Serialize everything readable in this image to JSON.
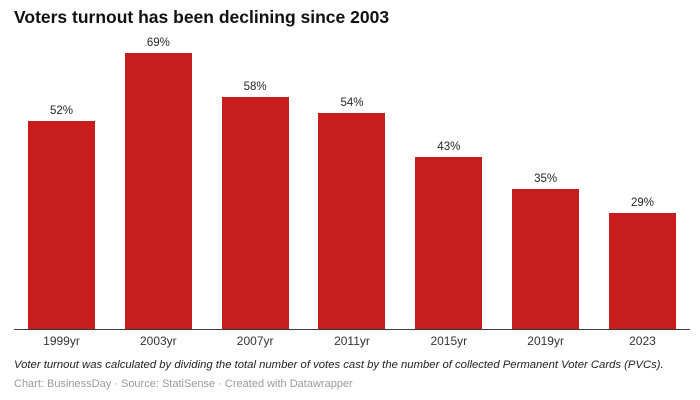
{
  "header": {
    "title": "Voters turnout has been declining since 2003"
  },
  "chart_data": {
    "type": "bar",
    "title": "Voters turnout has been declining since 2003",
    "categories": [
      "1999yr",
      "2003yr",
      "2007yr",
      "2011yr",
      "2015yr",
      "2019yr",
      "2023"
    ],
    "values": [
      52,
      69,
      58,
      54,
      43,
      35,
      29
    ],
    "value_labels": [
      "52%",
      "69%",
      "58%",
      "54%",
      "43%",
      "35%",
      "29%"
    ],
    "unit": "%",
    "bar_color": "#c71e1d",
    "axis_color": "#3a3a3a",
    "ylim": [
      0,
      69
    ],
    "grid": false,
    "legend": "none",
    "xlabel": "",
    "ylabel": ""
  },
  "footer": {
    "note": "Voter turnout was calculated by dividing the total number of votes cast by the number of collected Permanent Voter Cards (PVCs).",
    "credit": "Chart: BusinessDay · Source: StatiSense · Created with Datawrapper"
  }
}
